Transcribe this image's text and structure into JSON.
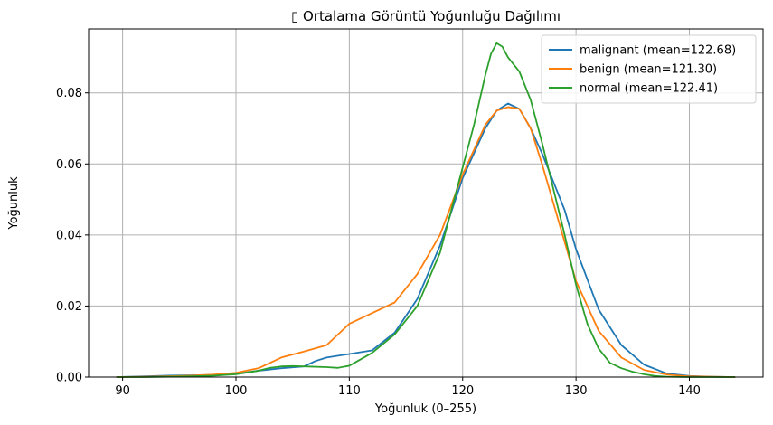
{
  "chart_data": {
    "type": "line",
    "title": "▯ Ortalama Görüntü Yoğunluğu Dağılımı",
    "xlabel": "Yoğunluk (0–255)",
    "ylabel": "Yoğunluk",
    "xlim": [
      87,
      146.5
    ],
    "ylim": [
      0,
      0.098
    ],
    "xticks": [
      90,
      100,
      110,
      120,
      130,
      140
    ],
    "yticks": [
      0.0,
      0.02,
      0.04,
      0.06,
      0.08
    ],
    "ytick_labels": [
      "0.00",
      "0.02",
      "0.04",
      "0.06",
      "0.08"
    ],
    "grid": true,
    "legend_position": "top-right",
    "series": [
      {
        "name": "malignant (mean=122.68)",
        "color": "#1f77b4",
        "x": [
          89.5,
          92,
          94,
          96,
          98,
          100,
          102,
          104,
          106,
          107,
          108,
          110,
          112,
          114,
          116,
          118,
          120,
          122,
          123,
          124,
          125,
          126,
          127,
          128,
          129,
          130,
          132,
          134,
          136,
          138,
          140,
          142,
          144
        ],
        "y": [
          0.0,
          0.0002,
          0.0004,
          0.0005,
          0.0006,
          0.0009,
          0.0018,
          0.0025,
          0.003,
          0.0045,
          0.0055,
          0.0065,
          0.0075,
          0.0125,
          0.022,
          0.037,
          0.056,
          0.07,
          0.075,
          0.077,
          0.0755,
          0.07,
          0.063,
          0.055,
          0.047,
          0.036,
          0.019,
          0.009,
          0.0035,
          0.001,
          0.0003,
          0.0001,
          0.0
        ]
      },
      {
        "name": "benign (mean=121.30)",
        "color": "#ff7f0e",
        "x": [
          89.5,
          92,
          94,
          96,
          98,
          100,
          102,
          104,
          106,
          108,
          110,
          112,
          114,
          116,
          118,
          120,
          122,
          123,
          124,
          125,
          126,
          127,
          128,
          129,
          130,
          132,
          134,
          136,
          138,
          140,
          142,
          144
        ],
        "y": [
          0.0,
          0.0001,
          0.0002,
          0.0004,
          0.0007,
          0.0012,
          0.0025,
          0.0055,
          0.0072,
          0.009,
          0.015,
          0.018,
          0.021,
          0.029,
          0.04,
          0.057,
          0.071,
          0.075,
          0.076,
          0.0755,
          0.07,
          0.06,
          0.049,
          0.038,
          0.027,
          0.013,
          0.0055,
          0.002,
          0.0007,
          0.0002,
          0.0001,
          0.0
        ]
      },
      {
        "name": "normal (mean=122.41)",
        "color": "#2ca02c",
        "x": [
          89.5,
          92,
          94,
          96,
          98,
          100,
          102,
          103,
          104,
          105,
          106,
          108,
          109,
          110,
          112,
          114,
          116,
          118,
          119,
          120,
          121,
          122,
          122.5,
          123,
          123.5,
          124,
          124.5,
          125,
          126,
          127,
          128,
          129,
          130,
          131,
          132,
          133,
          134,
          135,
          136,
          137,
          138,
          140,
          142,
          144
        ],
        "y": [
          0.0,
          0.0,
          0.0001,
          0.0002,
          0.0004,
          0.0008,
          0.0018,
          0.0026,
          0.003,
          0.0031,
          0.003,
          0.0028,
          0.0026,
          0.0032,
          0.0068,
          0.012,
          0.02,
          0.035,
          0.047,
          0.059,
          0.071,
          0.085,
          0.091,
          0.094,
          0.093,
          0.09,
          0.088,
          0.086,
          0.078,
          0.066,
          0.053,
          0.04,
          0.026,
          0.015,
          0.008,
          0.004,
          0.0025,
          0.0015,
          0.0008,
          0.0003,
          0.0001,
          0.0,
          0.0,
          0.0
        ]
      }
    ]
  }
}
